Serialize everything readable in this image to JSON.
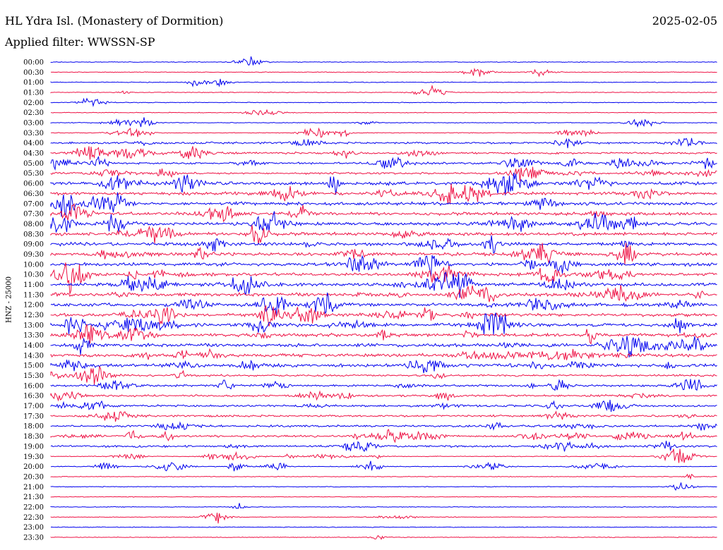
{
  "header": {
    "title": "HL Ydra Isl. (Monastery of Dormition)",
    "date": "2025-02-05",
    "filter": "Applied filter: WWSSN-SP"
  },
  "chart_data": {
    "type": "line",
    "ylabel": "HNZ - 25000",
    "colors": [
      "#0000ee",
      "#ee1144"
    ],
    "tick_labels": [
      "00:00",
      "00:30",
      "01:00",
      "01:30",
      "02:00",
      "02:30",
      "03:00",
      "03:30",
      "04:00",
      "04:30",
      "05:00",
      "05:30",
      "06:00",
      "06:30",
      "07:00",
      "07:30",
      "08:00",
      "08:30",
      "09:00",
      "09:30",
      "10:00",
      "10:30",
      "11:00",
      "11:30",
      "12:00",
      "12:30",
      "13:00",
      "13:30",
      "14:00",
      "14:30",
      "15:00",
      "15:30",
      "16:00",
      "16:30",
      "17:00",
      "17:30",
      "18:00",
      "18:30",
      "19:00",
      "19:30",
      "20:00",
      "20:30",
      "21:00",
      "21:30",
      "22:00",
      "22:30",
      "23:00",
      "23:30"
    ],
    "grid": false,
    "legend": "none"
  }
}
